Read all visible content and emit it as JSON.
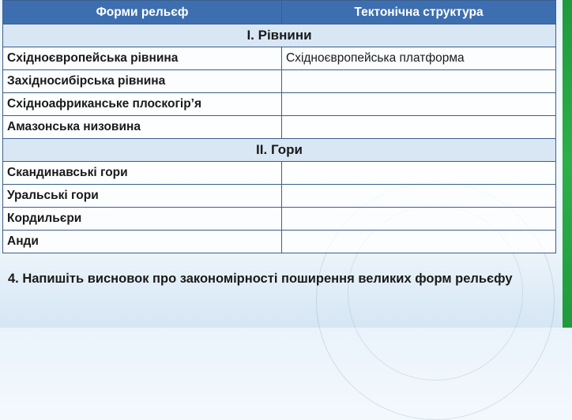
{
  "table": {
    "headers": [
      "Форми рельєф",
      "Тектонічна структура"
    ],
    "sections": [
      {
        "title": "І. Рівнини",
        "rows": [
          {
            "form": "Східноєвропейська рівнина",
            "structure": "Східноєвропейська платформа"
          },
          {
            "form": "Західносибірська рівнина",
            "structure": ""
          },
          {
            "form": "Східноафриканське плоскогір’я",
            "structure": ""
          },
          {
            "form": "Амазонська низовина",
            "structure": ""
          }
        ]
      },
      {
        "title": "ІІ. Гори",
        "rows": [
          {
            "form": "Скандинавські гори",
            "structure": ""
          },
          {
            "form": "Уральські гори",
            "structure": ""
          },
          {
            "form": "Кордильєри",
            "structure": ""
          },
          {
            "form": "Анди",
            "structure": ""
          }
        ]
      }
    ]
  },
  "task": "4. Напишіть висновок про закономірності поширення великих форм рельєфу",
  "colors": {
    "header": "#3d6fb0",
    "section": "#d9e7f5",
    "accent_strip": "#2cb04a"
  }
}
